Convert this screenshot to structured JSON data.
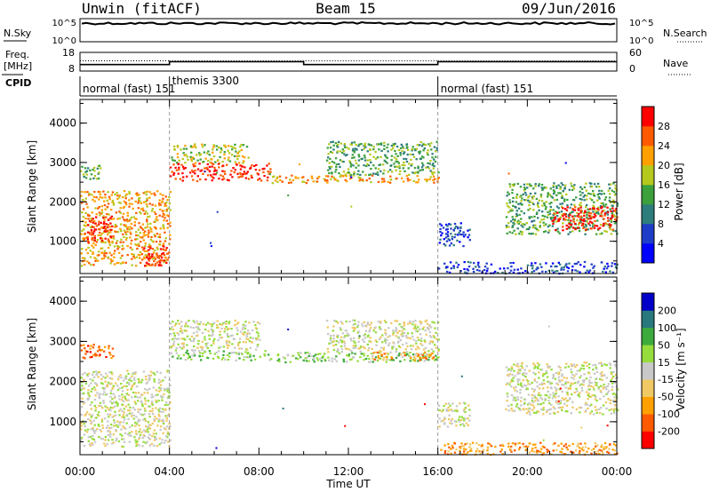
{
  "header": {
    "station": "Unwin (fitACF)",
    "beam": "Beam 15",
    "date": "09/Jun/2016"
  },
  "top_panels": {
    "nsky": {
      "label": "N.Sky",
      "ticks": [
        "10^5",
        "10^0"
      ]
    },
    "nsearch": {
      "label": "N.Search",
      "ticks": [
        "10^5",
        "10^0"
      ]
    },
    "freq": {
      "label": "Freq.",
      "unit": "[MHz]",
      "ticks": [
        "18",
        "8"
      ]
    },
    "nave": {
      "label": "Nave",
      "ticks": [
        "60",
        "0"
      ]
    },
    "cpid": {
      "label": "CPID"
    }
  },
  "cpid_segments": [
    {
      "start": 0,
      "end": 4,
      "label": "normal (fast) 151"
    },
    {
      "start": 4,
      "end": 16,
      "label": "themis 3300"
    },
    {
      "start": 16,
      "end": 24,
      "label": "normal (fast) 151"
    }
  ],
  "freq_trace": [
    {
      "start": 0,
      "end": 4,
      "value": 11.5
    },
    {
      "start": 4,
      "end": 10,
      "value": 13.0
    },
    {
      "start": 10,
      "end": 16,
      "value": 11.5
    },
    {
      "start": 16,
      "end": 24,
      "value": 13.0
    }
  ],
  "nave_trace": [
    {
      "start": 0,
      "end": 4,
      "value": 33
    },
    {
      "start": 4,
      "end": 16,
      "value": 33
    },
    {
      "start": 16,
      "end": 24,
      "value": 33
    }
  ],
  "x_axis": {
    "label": "Time UT",
    "ticks": [
      "00:00",
      "04:00",
      "08:00",
      "12:00",
      "16:00",
      "20:00",
      "00:00"
    ]
  },
  "range_axis": {
    "label": "Slant Range [km]",
    "ticks": [
      "1000",
      "2000",
      "3000",
      "4000"
    ]
  },
  "power_colorbar": {
    "label": "Power [dB]",
    "ticks": [
      "4",
      "8",
      "12",
      "16",
      "20",
      "24",
      "28"
    ],
    "colors": [
      "#0000ff",
      "#1e3cc8",
      "#2d7d7d",
      "#3ca03c",
      "#b4c81e",
      "#ffa000",
      "#ff5a00",
      "#ff0000"
    ]
  },
  "velocity_colorbar": {
    "label": "Velocity [m s⁻¹]",
    "ticks": [
      "-200",
      "-100",
      "-50",
      "-15",
      "15",
      "50",
      "100",
      "200"
    ],
    "colors": [
      "#ff0000",
      "#ff5a00",
      "#ffa000",
      "#f0c864",
      "#c8c8c8",
      "#96dc3c",
      "#3caa3c",
      "#28787d",
      "#0000c8"
    ]
  },
  "chart_data": [
    {
      "type": "heatmap",
      "name": "power",
      "x_range_hours": [
        0,
        24
      ],
      "y_range_km": [
        180,
        4600
      ],
      "regions": [
        {
          "t0": 0.0,
          "t1": 4.0,
          "r0": 400,
          "r1": 2300,
          "level": 5
        },
        {
          "t0": 0.0,
          "t1": 0.9,
          "r0": 2600,
          "r1": 2950,
          "level": 3
        },
        {
          "t0": 0.3,
          "t1": 1.4,
          "r0": 1000,
          "r1": 1700,
          "level": 7
        },
        {
          "t0": 2.8,
          "t1": 3.9,
          "r0": 400,
          "r1": 900,
          "level": 7
        },
        {
          "t0": 4.0,
          "t1": 7.5,
          "r0": 3000,
          "r1": 3500,
          "level": 4
        },
        {
          "t0": 4.0,
          "t1": 8.5,
          "r0": 2550,
          "r1": 3000,
          "level": 7
        },
        {
          "t0": 8.5,
          "t1": 16.0,
          "r0": 2500,
          "r1": 2700,
          "level": 5
        },
        {
          "t0": 11.0,
          "t1": 16.0,
          "r0": 2700,
          "r1": 3550,
          "level": 3
        },
        {
          "t0": 16.0,
          "t1": 17.4,
          "r0": 900,
          "r1": 1500,
          "level": 1
        },
        {
          "t0": 16.0,
          "t1": 24.0,
          "r0": 200,
          "r1": 500,
          "level": 1
        },
        {
          "t0": 19.0,
          "t1": 24.0,
          "r0": 1200,
          "r1": 2500,
          "level": 3
        },
        {
          "t0": 21.0,
          "t1": 24.0,
          "r0": 1300,
          "r1": 1900,
          "level": 7
        }
      ]
    },
    {
      "type": "heatmap",
      "name": "velocity",
      "x_range_hours": [
        0,
        24
      ],
      "y_range_km": [
        180,
        4600
      ],
      "regions": [
        {
          "t0": 0.0,
          "t1": 4.0,
          "r0": 400,
          "r1": 2300,
          "level": 4
        },
        {
          "t0": 0.0,
          "t1": 1.5,
          "r0": 2600,
          "r1": 2950,
          "level": 1
        },
        {
          "t0": 4.0,
          "t1": 8.0,
          "r0": 2800,
          "r1": 3550,
          "level": 4
        },
        {
          "t0": 4.0,
          "t1": 8.5,
          "r0": 2550,
          "r1": 2800,
          "level": 5
        },
        {
          "t0": 8.5,
          "t1": 16.0,
          "r0": 2500,
          "r1": 2750,
          "level": 5
        },
        {
          "t0": 13.0,
          "t1": 15.8,
          "r0": 2550,
          "r1": 2750,
          "level": 2
        },
        {
          "t0": 11.0,
          "t1": 16.0,
          "r0": 2750,
          "r1": 3550,
          "level": 4
        },
        {
          "t0": 16.0,
          "t1": 17.4,
          "r0": 900,
          "r1": 1500,
          "level": 4
        },
        {
          "t0": 16.0,
          "t1": 24.0,
          "r0": 200,
          "r1": 500,
          "level": 2
        },
        {
          "t0": 19.0,
          "t1": 24.0,
          "r0": 1200,
          "r1": 2500,
          "level": 4
        }
      ]
    }
  ]
}
